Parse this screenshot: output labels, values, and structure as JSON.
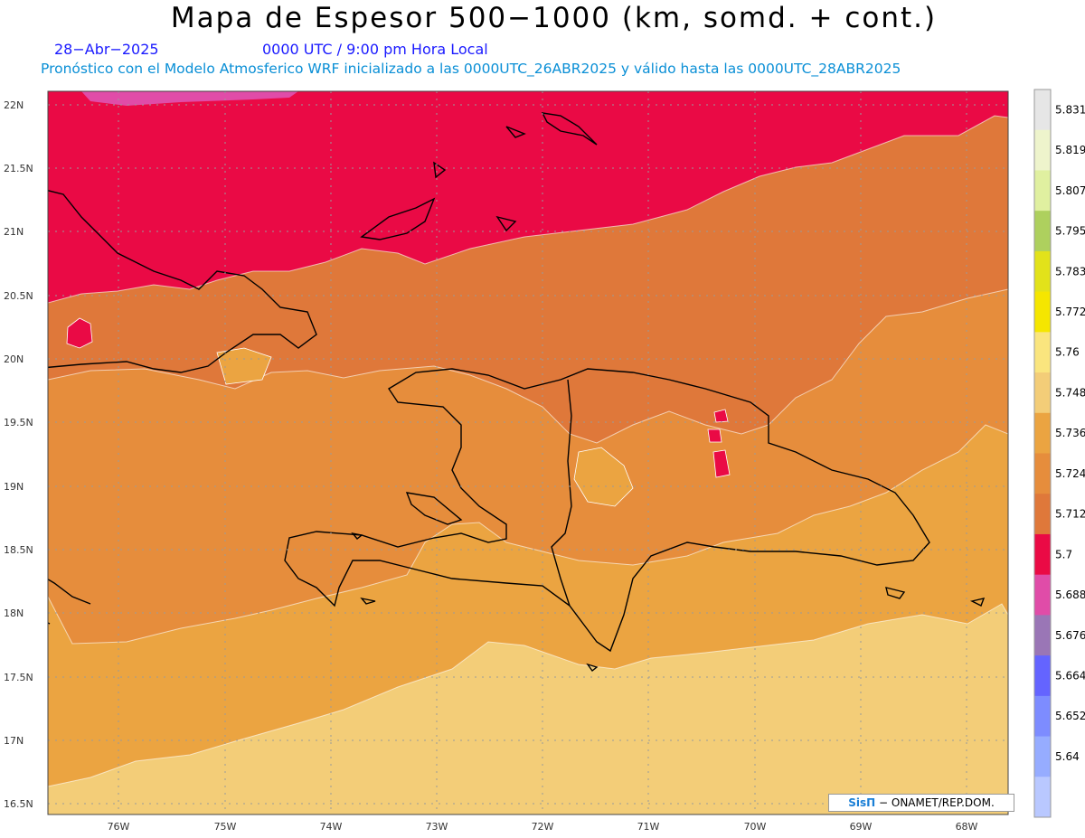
{
  "header": {
    "title": "Mapa de Espesor 500−1000 (km, somd. + cont.)",
    "date": "28−Abr−2025",
    "time": "0000 UTC / 9:00 pm Hora Local",
    "model_info": "Pronóstico con el Modelo Atmosferico WRF inicializado a las 0000UTC_26ABR2025 y válido hasta las  0000UTC_28ABR2025"
  },
  "axes": {
    "lat_labels": [
      "22N",
      "21.5N",
      "21N",
      "20.5N",
      "20N",
      "19.5N",
      "19N",
      "18.5N",
      "18N",
      "17.5N",
      "17N",
      "16.5N"
    ],
    "lon_labels": [
      "76W",
      "75W",
      "74W",
      "73W",
      "72W",
      "71W",
      "70W",
      "69W",
      "68W"
    ]
  },
  "colorbar": {
    "labels": [
      "5.831",
      "5.819",
      "5.807",
      "5.795",
      "5.783",
      "5.772",
      "5.76",
      "5.748",
      "5.736",
      "5.724",
      "5.712",
      "5.7",
      "5.688",
      "5.676",
      "5.664",
      "5.652",
      "5.64"
    ],
    "colors": [
      "#e6e6e6",
      "#eef4cc",
      "#e0f0a0",
      "#aed05e",
      "#e2e21a",
      "#f5e600",
      "#fae57e",
      "#f3cd78",
      "#eba441",
      "#e68d3c",
      "#df783a",
      "#ea0a45",
      "#e04ca8",
      "#9a76b6",
      "#6464ff",
      "#7d8cff",
      "#96acff",
      "#b9c8ff"
    ]
  },
  "fill_colors": {
    "red": "#ea0a45",
    "dark_orange": "#df783a",
    "mid_orange": "#e68d3c",
    "light_orange": "#eba441",
    "tan": "#f3cd78",
    "pink": "#e04ca8"
  },
  "credit": {
    "brand": "SisΠ",
    "text": "− ONAMET/REP.DOM."
  }
}
